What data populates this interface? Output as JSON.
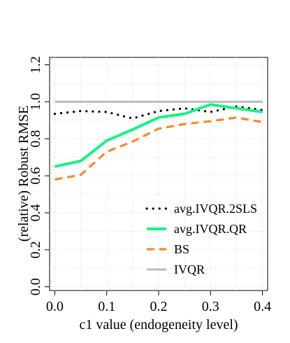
{
  "chart_data": {
    "type": "line",
    "title": "",
    "xlabel": "c1 value (endogeneity level)",
    "ylabel": "(relative) Robust RMSE",
    "xlim": [
      -0.01,
      0.41
    ],
    "ylim": [
      -0.02,
      1.24
    ],
    "xticks": [
      0.0,
      0.1,
      0.2,
      0.3,
      0.4
    ],
    "xtick_labels": [
      "0.0",
      "0.1",
      "0.2",
      "0.3",
      "0.4"
    ],
    "yticks": [
      0.0,
      0.2,
      0.4,
      0.6,
      0.8,
      1.0,
      1.2
    ],
    "ytick_labels": [
      "0.0",
      "0.2",
      "0.4",
      "0.6",
      "0.8",
      "1.0",
      "1.2"
    ],
    "grid": true,
    "legend_position": "bottom-right",
    "x": [
      0.0,
      0.05,
      0.1,
      0.15,
      0.2,
      0.25,
      0.3,
      0.35,
      0.4
    ],
    "series": [
      {
        "name": "avg.IVQR.2SLS",
        "style": "dotted",
        "color": "#000000",
        "values": [
          0.935,
          0.95,
          0.945,
          0.91,
          0.95,
          0.965,
          0.945,
          0.975,
          0.955
        ]
      },
      {
        "name": "avg.IVQR.QR",
        "style": "solid",
        "color": "#19f283",
        "values": [
          0.65,
          0.68,
          0.79,
          0.85,
          0.915,
          0.935,
          0.985,
          0.965,
          0.945
        ]
      },
      {
        "name": "BS",
        "style": "dashed",
        "color": "#f58a2e",
        "values": [
          0.58,
          0.605,
          0.73,
          0.785,
          0.855,
          0.88,
          0.895,
          0.915,
          0.89
        ]
      },
      {
        "name": "IVQR",
        "style": "solid",
        "color": "#bdbdbd",
        "values": [
          1.0,
          1.0,
          1.0,
          1.0,
          1.0,
          1.0,
          1.0,
          1.0,
          1.0
        ]
      }
    ]
  }
}
